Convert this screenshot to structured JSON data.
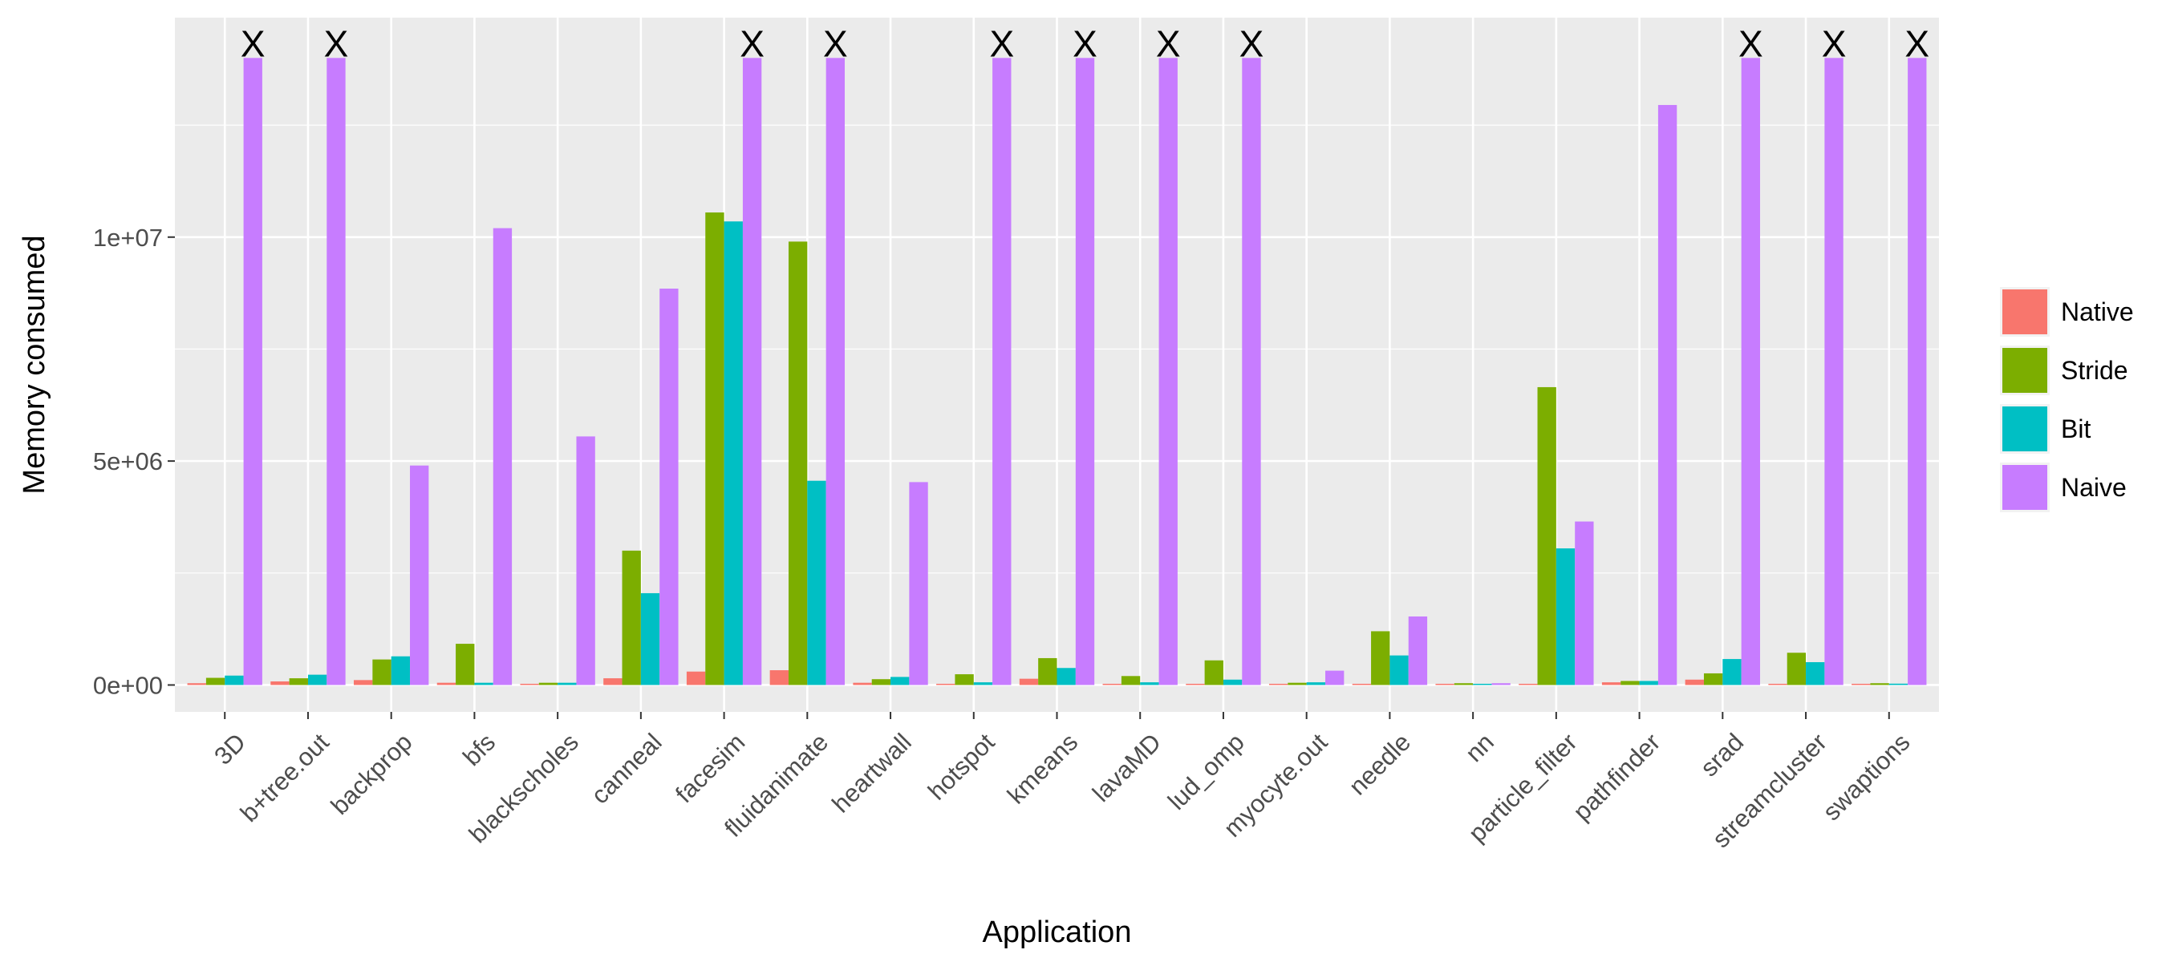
{
  "chart_data": {
    "type": "bar",
    "xlabel": "Application",
    "ylabel": "Memory consumed",
    "ylim": [
      -600000,
      14900000
    ],
    "yticks": [
      0,
      5000000,
      10000000
    ],
    "ytick_labels": [
      "0e+00",
      "5e+06",
      "1e+07"
    ],
    "grid": true,
    "legend_position": "right",
    "categories": [
      "3D",
      "b+tree.out",
      "backprop",
      "bfs",
      "blackscholes",
      "canneal",
      "facesim",
      "fluidanimate",
      "heartwall",
      "hotspot",
      "kmeans",
      "lavaMD",
      "lud_omp",
      "myocyte.out",
      "needle",
      "nn",
      "particle_filter",
      "pathfinder",
      "srad",
      "streamcluster",
      "swaptions"
    ],
    "series": [
      {
        "name": "Native",
        "color": "#F8766D",
        "values": [
          40000,
          80000,
          110000,
          50000,
          10000,
          150000,
          300000,
          330000,
          50000,
          20000,
          140000,
          20000,
          20000,
          10000,
          10000,
          10000,
          20000,
          60000,
          120000,
          20000,
          10000
        ]
      },
      {
        "name": "Stride",
        "color": "#7CAE00",
        "values": [
          160000,
          150000,
          570000,
          920000,
          50000,
          3000000,
          10550000,
          9900000,
          130000,
          240000,
          600000,
          200000,
          550000,
          50000,
          1200000,
          40000,
          6650000,
          90000,
          260000,
          720000,
          40000
        ]
      },
      {
        "name": "Bit",
        "color": "#00BFC4",
        "values": [
          210000,
          230000,
          640000,
          50000,
          50000,
          2050000,
          10350000,
          4560000,
          180000,
          60000,
          380000,
          60000,
          120000,
          60000,
          660000,
          20000,
          3050000,
          90000,
          580000,
          510000,
          30000
        ]
      },
      {
        "name": "Naive",
        "color": "#C77CFF",
        "values": [
          14000000,
          14000000,
          4900000,
          10200000,
          5550000,
          8850000,
          14000000,
          14000000,
          4530000,
          14000000,
          14000000,
          14000000,
          14000000,
          320000,
          1530000,
          40000,
          3650000,
          12950000,
          14000000,
          14000000,
          14000000
        ]
      }
    ],
    "markers": {
      "symbol": "X",
      "series": "Naive",
      "categories": [
        "3D",
        "b+tree.out",
        "facesim",
        "fluidanimate",
        "hotspot",
        "kmeans",
        "lavaMD",
        "lud_omp",
        "srad",
        "streamcluster",
        "swaptions"
      ]
    }
  }
}
